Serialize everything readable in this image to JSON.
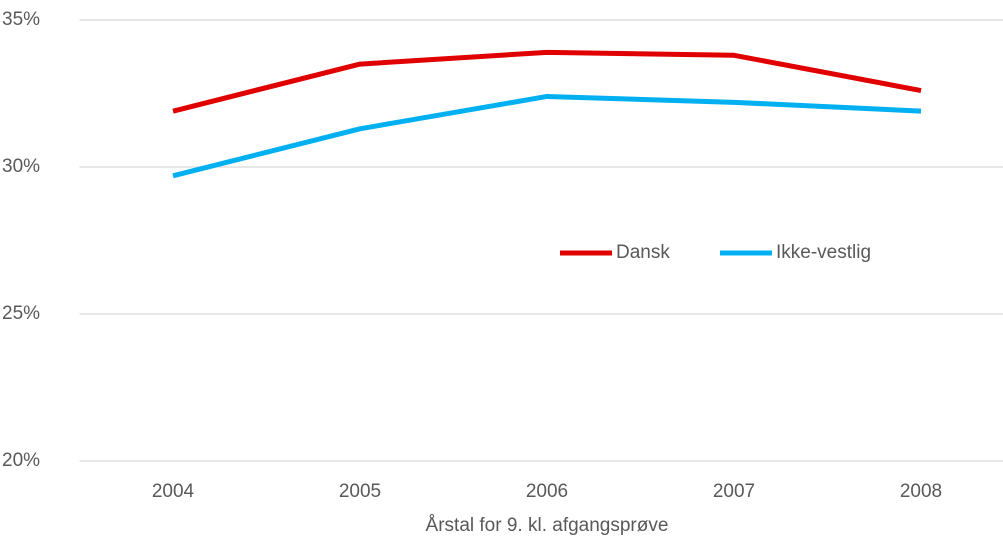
{
  "chart_data": {
    "type": "line",
    "xlabel": "Årstal for 9. kl. afgangsprøve",
    "categories": [
      "2004",
      "2005",
      "2006",
      "2007",
      "2008"
    ],
    "series": [
      {
        "name": "Dansk",
        "color": "#e00000",
        "values": [
          31.9,
          33.5,
          33.9,
          33.8,
          32.6
        ]
      },
      {
        "name": "Ikke-vestlig",
        "color": "#00b0f0",
        "values": [
          29.7,
          31.3,
          32.4,
          32.2,
          31.9
        ]
      }
    ],
    "ylim": [
      20,
      35
    ],
    "yticks": [
      {
        "value": 20,
        "label": "20%"
      },
      {
        "value": 25,
        "label": "25%"
      },
      {
        "value": 30,
        "label": "30%"
      },
      {
        "value": 35,
        "label": "35%"
      }
    ],
    "grid": true,
    "legend": "center right"
  }
}
